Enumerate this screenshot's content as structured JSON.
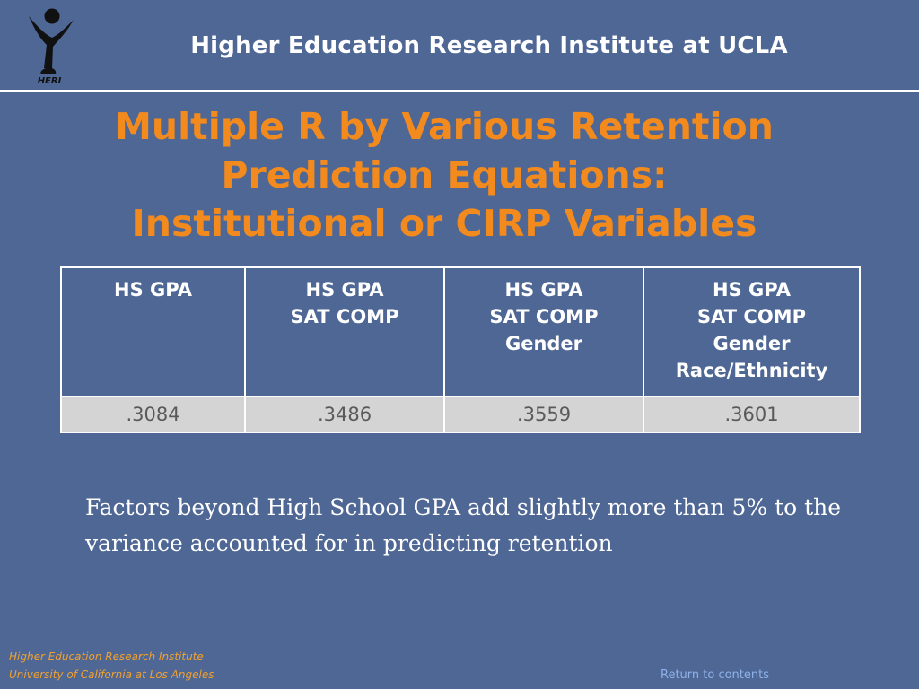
{
  "header": {
    "logo_text": "HERI",
    "title": "Higher Education Research Institute at UCLA"
  },
  "slide_title": {
    "line1": "Multiple R by Various Retention",
    "line2": "Prediction Equations:",
    "line3": "Institutional or CIRP Variables"
  },
  "table": {
    "columns": [
      {
        "lines": [
          "HS GPA"
        ]
      },
      {
        "lines": [
          "HS GPA",
          "SAT COMP"
        ]
      },
      {
        "lines": [
          "HS GPA",
          "SAT COMP",
          "Gender"
        ]
      },
      {
        "lines": [
          "HS GPA",
          "SAT COMP",
          "Gender",
          "Race/Ethnicity"
        ]
      }
    ],
    "values": [
      ".3084",
      ".3486",
      ".3559",
      ".3601"
    ]
  },
  "note": "Factors beyond High School GPA add slightly more than 5% to the variance accounted for in predicting retention",
  "footer": {
    "line1": "Higher Education Research Institute",
    "line2": "University of California at Los Angeles"
  },
  "return_link": "Return to contents",
  "colors": {
    "background": "#4f6795",
    "title": "#f28a1e",
    "footer": "#f0a030",
    "link": "#8fb2ea",
    "value_cell": "#d4d4d4"
  }
}
